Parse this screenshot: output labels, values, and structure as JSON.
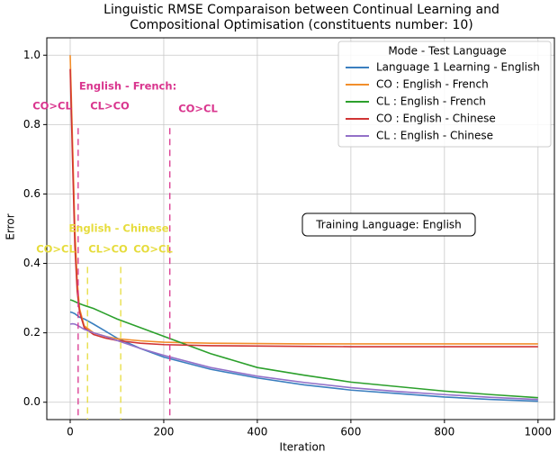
{
  "chart_data": {
    "type": "line",
    "title": [
      "Linguistic RMSE Comparaison between Continual Learning and",
      "Compositional Optimisation (constituents number: 10)"
    ],
    "xlabel": "Iteration",
    "ylabel": "Error",
    "xlim": [
      -50,
      1035
    ],
    "ylim": [
      -0.05,
      1.05
    ],
    "xticks": [
      0,
      200,
      400,
      600,
      800,
      1000
    ],
    "yticks": [
      {
        "value": 0,
        "label": "0.0"
      },
      0.2,
      0.4,
      0.6,
      0.8,
      {
        "value": 1,
        "label": "1.0"
      }
    ],
    "grid": true,
    "legend_title": "Mode - Test Language",
    "legend": "upper right",
    "x": [
      0,
      5,
      10,
      15,
      20,
      30,
      50,
      75,
      100,
      150,
      200,
      300,
      400,
      500,
      600,
      700,
      800,
      900,
      1000
    ],
    "series": [
      {
        "name": "Language 1 Learning - English",
        "color": "#3b7fbf",
        "values": [
          0.26,
          0.258,
          0.255,
          0.25,
          0.245,
          0.24,
          0.225,
          0.205,
          0.185,
          0.155,
          0.13,
          0.095,
          0.07,
          0.05,
          0.035,
          0.025,
          0.015,
          0.008,
          0.003
        ]
      },
      {
        "name": "CO : English - French",
        "color": "#f28e2b",
        "values": [
          1.0,
          0.75,
          0.5,
          0.35,
          0.27,
          0.22,
          0.2,
          0.19,
          0.183,
          0.177,
          0.173,
          0.17,
          0.169,
          0.168,
          0.168,
          0.168,
          0.168,
          0.168,
          0.168
        ]
      },
      {
        "name": "CL : English - French",
        "color": "#2ca02c",
        "values": [
          0.295,
          0.293,
          0.29,
          0.287,
          0.284,
          0.279,
          0.27,
          0.255,
          0.24,
          0.215,
          0.19,
          0.14,
          0.1,
          0.078,
          0.058,
          0.045,
          0.032,
          0.022,
          0.013
        ]
      },
      {
        "name": "CO : English - Chinese",
        "color": "#d03434",
        "values": [
          0.96,
          0.7,
          0.45,
          0.32,
          0.26,
          0.215,
          0.195,
          0.185,
          0.178,
          0.17,
          0.166,
          0.163,
          0.162,
          0.161,
          0.16,
          0.16,
          0.16,
          0.16,
          0.16
        ]
      },
      {
        "name": "CL : English - Chinese",
        "color": "#9370c8",
        "values": [
          0.225,
          0.226,
          0.225,
          0.222,
          0.218,
          0.21,
          0.2,
          0.19,
          0.178,
          0.155,
          0.135,
          0.1,
          0.075,
          0.057,
          0.042,
          0.031,
          0.022,
          0.014,
          0.008
        ]
      }
    ],
    "vlines": [
      {
        "x": 17,
        "ymax": 0.79,
        "color": "#d9358e"
      },
      {
        "x": 213,
        "ymax": 0.79,
        "color": "#d9358e"
      },
      {
        "x": 37,
        "ymax": 0.39,
        "color": "#e6dc3c"
      },
      {
        "x": 108,
        "ymax": 0.39,
        "color": "#e6dc3c"
      }
    ],
    "annotations": [
      {
        "text": "CO>CL",
        "color": "#d9358e"
      },
      {
        "text": "English - French:",
        "color": "#d9358e"
      },
      {
        "text": "CL>CO",
        "color": "#d9358e"
      },
      {
        "text": "CO>CL",
        "color": "#d9358e"
      },
      {
        "text": "English - Chinese",
        "color": "#e6dc3c"
      },
      {
        "text": "CO>CL",
        "color": "#e6dc3c"
      },
      {
        "text": "CL>CO",
        "color": "#e6dc3c"
      },
      {
        "text": "CO>CL",
        "color": "#e6dc3c"
      }
    ],
    "note": "Training Language: English"
  }
}
